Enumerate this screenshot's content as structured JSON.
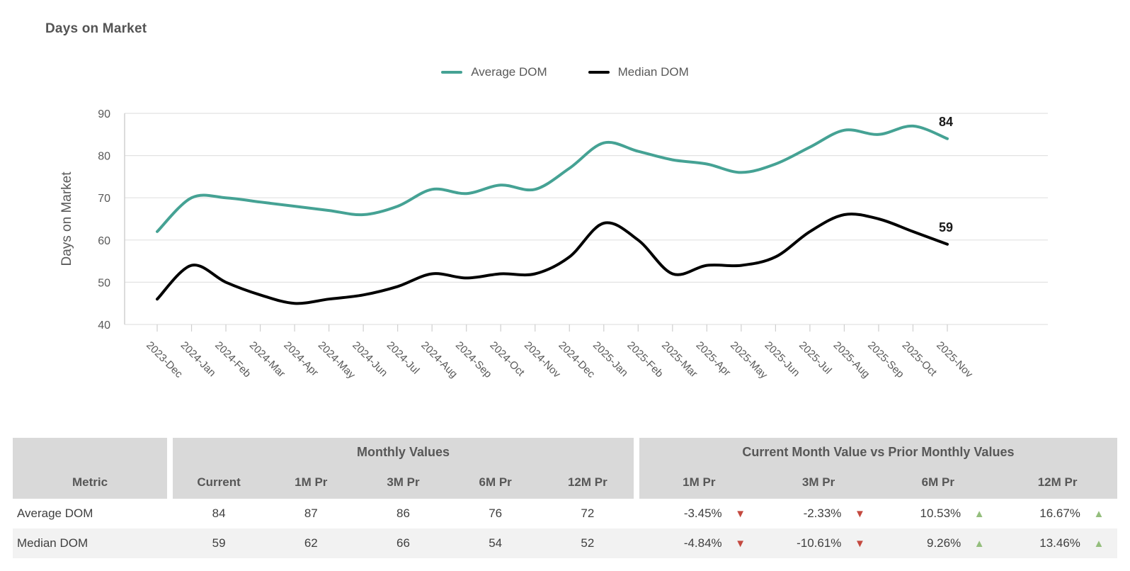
{
  "title": "Days on Market",
  "legend": [
    {
      "label": "Average DOM",
      "color": "#45A294"
    },
    {
      "label": "Median DOM",
      "color": "#000000"
    }
  ],
  "chart_data": {
    "type": "line",
    "title": "Days on Market",
    "xlabel": "",
    "ylabel": "Days on Market",
    "ylim": [
      40,
      90
    ],
    "y_ticks": [
      40,
      50,
      60,
      70,
      80,
      90
    ],
    "grid": true,
    "legend_position": "top",
    "categories": [
      "2023-Dec",
      "2024-Jan",
      "2024-Feb",
      "2024-Mar",
      "2024-Apr",
      "2024-May",
      "2024-Jun",
      "2024-Jul",
      "2024-Aug",
      "2024-Sep",
      "2024-Oct",
      "2024-Nov",
      "2024-Dec",
      "2025-Jan",
      "2025-Feb",
      "2025-Mar",
      "2025-Apr",
      "2025-May",
      "2025-Jun",
      "2025-Jul",
      "2025-Aug",
      "2025-Sep",
      "2025-Oct",
      "2025-Nov"
    ],
    "series": [
      {
        "name": "Average DOM",
        "color": "#45A294",
        "values": [
          62,
          70,
          70,
          69,
          68,
          67,
          66,
          68,
          72,
          71,
          73,
          72,
          77,
          83,
          81,
          79,
          78,
          76,
          78,
          82,
          86,
          85,
          87,
          84
        ],
        "end_label": "84"
      },
      {
        "name": "Median DOM",
        "color": "#000000",
        "values": [
          46,
          54,
          50,
          47,
          45,
          46,
          47,
          49,
          52,
          51,
          52,
          52,
          56,
          64,
          60,
          52,
          54,
          54,
          56,
          62,
          66,
          65,
          62,
          59
        ],
        "end_label": "59"
      }
    ]
  },
  "table": {
    "metric_header": "Metric",
    "groups": [
      {
        "label": "Monthly Values",
        "columns": [
          "Current",
          "1M Pr",
          "3M Pr",
          "6M Pr",
          "12M Pr"
        ]
      },
      {
        "label": "Current Month Value vs Prior Monthly Values",
        "columns": [
          "1M Pr",
          "3M Pr",
          "6M Pr",
          "12M Pr"
        ]
      }
    ],
    "rows": [
      {
        "metric": "Average DOM",
        "monthly": [
          "84",
          "87",
          "86",
          "76",
          "72"
        ],
        "changes": [
          {
            "value": "-3.45%",
            "glyph": "▼",
            "color": "#C4493F"
          },
          {
            "value": "-2.33%",
            "glyph": "▼",
            "color": "#C4493F"
          },
          {
            "value": "10.53%",
            "glyph": "▲",
            "color": "#94BE7D"
          },
          {
            "value": "16.67%",
            "glyph": "▲",
            "color": "#94BE7D"
          }
        ]
      },
      {
        "metric": "Median DOM",
        "monthly": [
          "59",
          "62",
          "66",
          "54",
          "52"
        ],
        "changes": [
          {
            "value": "-4.84%",
            "glyph": "▼",
            "color": "#C4493F"
          },
          {
            "value": "-10.61%",
            "glyph": "▼",
            "color": "#C4493F"
          },
          {
            "value": "9.26%",
            "glyph": "▲",
            "color": "#94BE7D"
          },
          {
            "value": "13.46%",
            "glyph": "▲",
            "color": "#94BE7D"
          }
        ]
      }
    ],
    "status_colors": {
      "up": "#94BE7D",
      "down": "#C4493F"
    }
  }
}
